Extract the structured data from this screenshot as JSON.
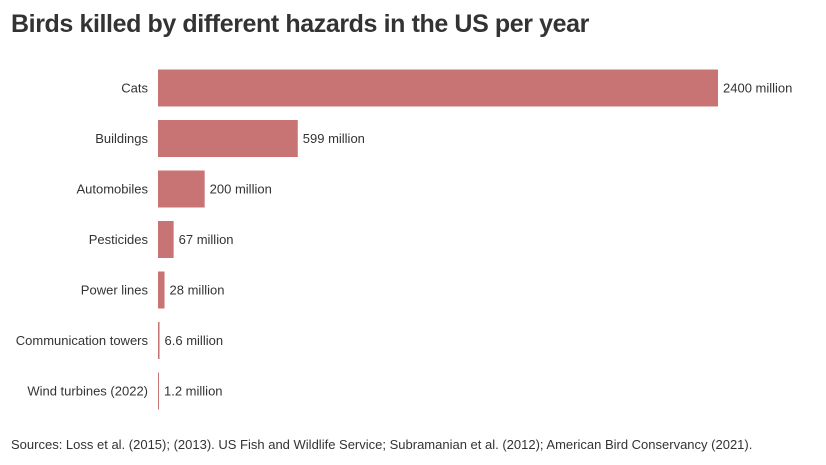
{
  "title": "Birds killed by different hazards in the US per year",
  "sources": "Sources: Loss et al. (2015); (2013). US Fish and Wildlife Service; Subramanian et al. (2012); American Bird Conservancy (2021).",
  "colors": {
    "bar": "#c87474",
    "text": "#333333"
  },
  "chart_data": {
    "type": "bar",
    "orientation": "horizontal",
    "title": "Birds killed by different hazards in the US per year",
    "xlabel": "",
    "ylabel": "",
    "unit": "million",
    "grid": false,
    "xlim": [
      0,
      2400
    ],
    "categories": [
      "Cats",
      "Buildings",
      "Automobiles",
      "Pesticides",
      "Power lines",
      "Communication towers",
      "Wind turbines (2022)"
    ],
    "values": [
      2400,
      599,
      200,
      67,
      28,
      6.6,
      1.2
    ],
    "value_labels": [
      "2400 million",
      "599 million",
      "200 million",
      "67 million",
      "28 million",
      "6.6 million",
      "1.2 million"
    ]
  }
}
